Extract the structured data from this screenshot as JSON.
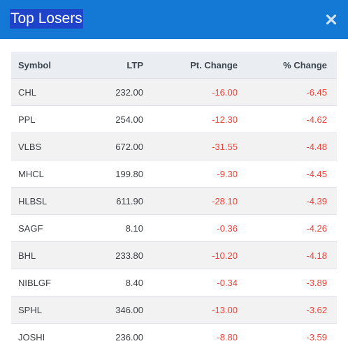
{
  "header": {
    "title": "Top Losers",
    "accent": "#1479d4"
  },
  "table": {
    "columns": {
      "symbol": "Symbol",
      "ltp": "LTP",
      "pt_change": "Pt. Change",
      "pct_change": "% Change"
    },
    "rows": [
      {
        "symbol": "CHL",
        "ltp": "232.00",
        "pt_change": "-16.00",
        "pct_change": "-6.45"
      },
      {
        "symbol": "PPL",
        "ltp": "254.00",
        "pt_change": "-12.30",
        "pct_change": "-4.62"
      },
      {
        "symbol": "VLBS",
        "ltp": "672.00",
        "pt_change": "-31.55",
        "pct_change": "-4.48"
      },
      {
        "symbol": "MHCL",
        "ltp": "199.80",
        "pt_change": "-9.30",
        "pct_change": "-4.45"
      },
      {
        "symbol": "HLBSL",
        "ltp": "611.90",
        "pt_change": "-28.10",
        "pct_change": "-4.39"
      },
      {
        "symbol": "SAGF",
        "ltp": "8.10",
        "pt_change": "-0.36",
        "pct_change": "-4.26"
      },
      {
        "symbol": "BHL",
        "ltp": "233.80",
        "pt_change": "-10.20",
        "pct_change": "-4.18"
      },
      {
        "symbol": "NIBLGF",
        "ltp": "8.40",
        "pt_change": "-0.34",
        "pct_change": "-3.89"
      },
      {
        "symbol": "SPHL",
        "ltp": "346.00",
        "pt_change": "-13.00",
        "pct_change": "-3.62"
      },
      {
        "symbol": "JOSHI",
        "ltp": "236.00",
        "pt_change": "-8.80",
        "pct_change": "-3.59"
      }
    ],
    "negative_color": "#e8453c"
  },
  "icons": {
    "close": "close-icon"
  }
}
